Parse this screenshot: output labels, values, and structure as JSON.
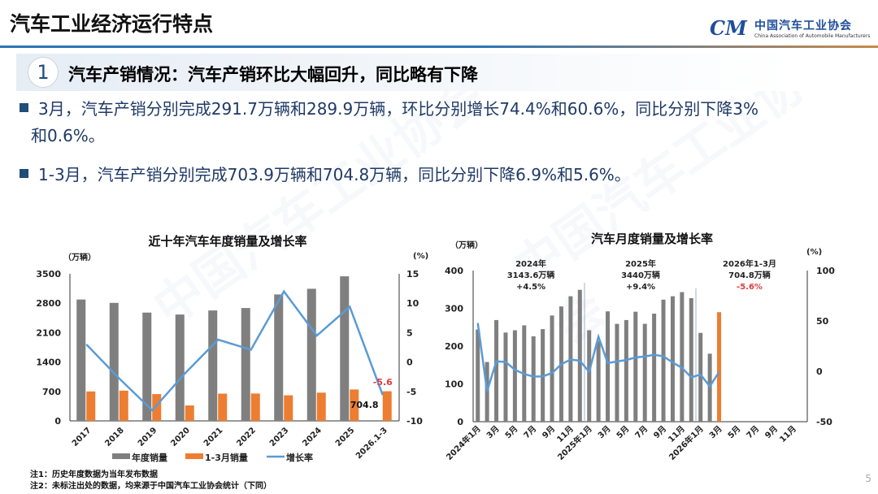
{
  "header": {
    "title": "汽车工业经济运行特点",
    "logo_cn": "中国汽车工业协会",
    "logo_en": "China Association of Automobile Manufacturers",
    "logo_mark": "CM"
  },
  "section": {
    "number": "1",
    "title": "汽车产销情况：汽车产销环比大幅回升，同比略有下降"
  },
  "bullets": [
    {
      "line1": "3月，汽车产销分别完成291.7万辆和289.9万辆，环比分别增长74.4%和60.6%，同比分别下降3%",
      "line2": "和0.6%。"
    },
    {
      "line1": "1-3月，汽车产销分别完成703.9万辆和704.8万辆，同比分别下降6.9%和5.6%。"
    }
  ],
  "notes": [
    "注1：历史年度数据为当年发布数据",
    "注2：未标注出处的数据，均来源于中国汽车工业协会统计（下同）"
  ],
  "page_number": "5",
  "colors": {
    "gray_bar": "#7f7f7f",
    "orange_bar": "#ed7d31",
    "line": "#5b9bd5",
    "negative": "#e03c3c"
  },
  "chart_data": [
    {
      "type": "bar",
      "title": "近十年汽车年度销量及增长率",
      "ylabel": "（万辆）",
      "y2label": "(%)",
      "categories": [
        "2017",
        "2018",
        "2019",
        "2020",
        "2021",
        "2022",
        "2023",
        "2024",
        "2025",
        "2026.1-3"
      ],
      "ylim": [
        0,
        3500
      ],
      "yticks": [
        "0",
        "700",
        "1400",
        "2100",
        "2800",
        "3500"
      ],
      "y2lim": [
        -10,
        15
      ],
      "y2ticks": [
        "-10",
        "-5",
        "0",
        "5",
        "10",
        "15"
      ],
      "series": [
        {
          "name": "年度销量",
          "type": "bar",
          "values": [
            2888,
            2808,
            2577,
            2531,
            2628,
            2686,
            3009,
            3144,
            3440,
            null
          ]
        },
        {
          "name": "1-3月销量",
          "type": "bar",
          "values": [
            701,
            719,
            637,
            367,
            648,
            651,
            608,
            672,
            747,
            704.8
          ]
        },
        {
          "name": "增长率",
          "type": "line",
          "axis": "right",
          "values": [
            3.0,
            -2.8,
            -8.2,
            -1.9,
            3.8,
            2.1,
            12.0,
            4.5,
            9.4,
            -5.6
          ]
        }
      ],
      "annotations": {
        "growth_label": "-5.6",
        "q1_label": "704.8"
      },
      "legend": "bottom"
    },
    {
      "type": "bar",
      "title": "汽车月度销量及增长率",
      "ylabel": "（万辆）",
      "y2label": "(%)",
      "categories": [
        "2024年1月",
        "2月",
        "3月",
        "4月",
        "5月",
        "6月",
        "7月",
        "8月",
        "9月",
        "10月",
        "11月",
        "12月",
        "2025年1月",
        "2月",
        "3月",
        "4月",
        "5月",
        "6月",
        "7月",
        "8月",
        "9月",
        "10月",
        "11月",
        "12月",
        "2026年1月",
        "2月",
        "3月",
        "4月",
        "5月",
        "6月",
        "7月",
        "8月",
        "9月",
        "10月",
        "11月",
        "12月"
      ],
      "ylim": [
        0,
        400
      ],
      "yticks": [
        "0",
        "100",
        "200",
        "300",
        "400"
      ],
      "y2lim": [
        -50,
        100
      ],
      "y2ticks": [
        "-50",
        "0",
        "50",
        "100"
      ],
      "series": [
        {
          "type": "bar",
          "values": [
            244,
            158,
            269,
            236,
            242,
            255,
            226,
            245,
            281,
            305,
            332,
            349,
            242,
            213,
            292,
            259,
            269,
            291,
            259,
            286,
            323,
            332,
            343,
            327,
            235,
            180,
            289.9,
            null,
            null,
            null,
            null,
            null,
            null,
            null,
            null,
            null
          ],
          "highlight_index": 26
        },
        {
          "type": "line",
          "axis": "right",
          "values": [
            47.9,
            -19.9,
            9.9,
            9.3,
            1.5,
            -2.7,
            -5.2,
            -5.0,
            -1.7,
            7.0,
            11.7,
            10.5,
            -0.6,
            34.4,
            8.2,
            9.8,
            11.2,
            13.8,
            14.7,
            16.4,
            14.9,
            8.8,
            3.4,
            -6.0,
            -3.2,
            -15.0,
            -0.6,
            null,
            null,
            null,
            null,
            null,
            null,
            null,
            null,
            null
          ]
        }
      ],
      "annotations": [
        {
          "l1": "2024年",
          "l2": "3143.6万辆",
          "l3": "+4.5%"
        },
        {
          "l1": "2025年",
          "l2": "3440万辆",
          "l3": "+9.4%"
        },
        {
          "l1": "2026年1-3月",
          "l2": "704.8万辆",
          "l3": "-5.6%"
        }
      ]
    }
  ]
}
